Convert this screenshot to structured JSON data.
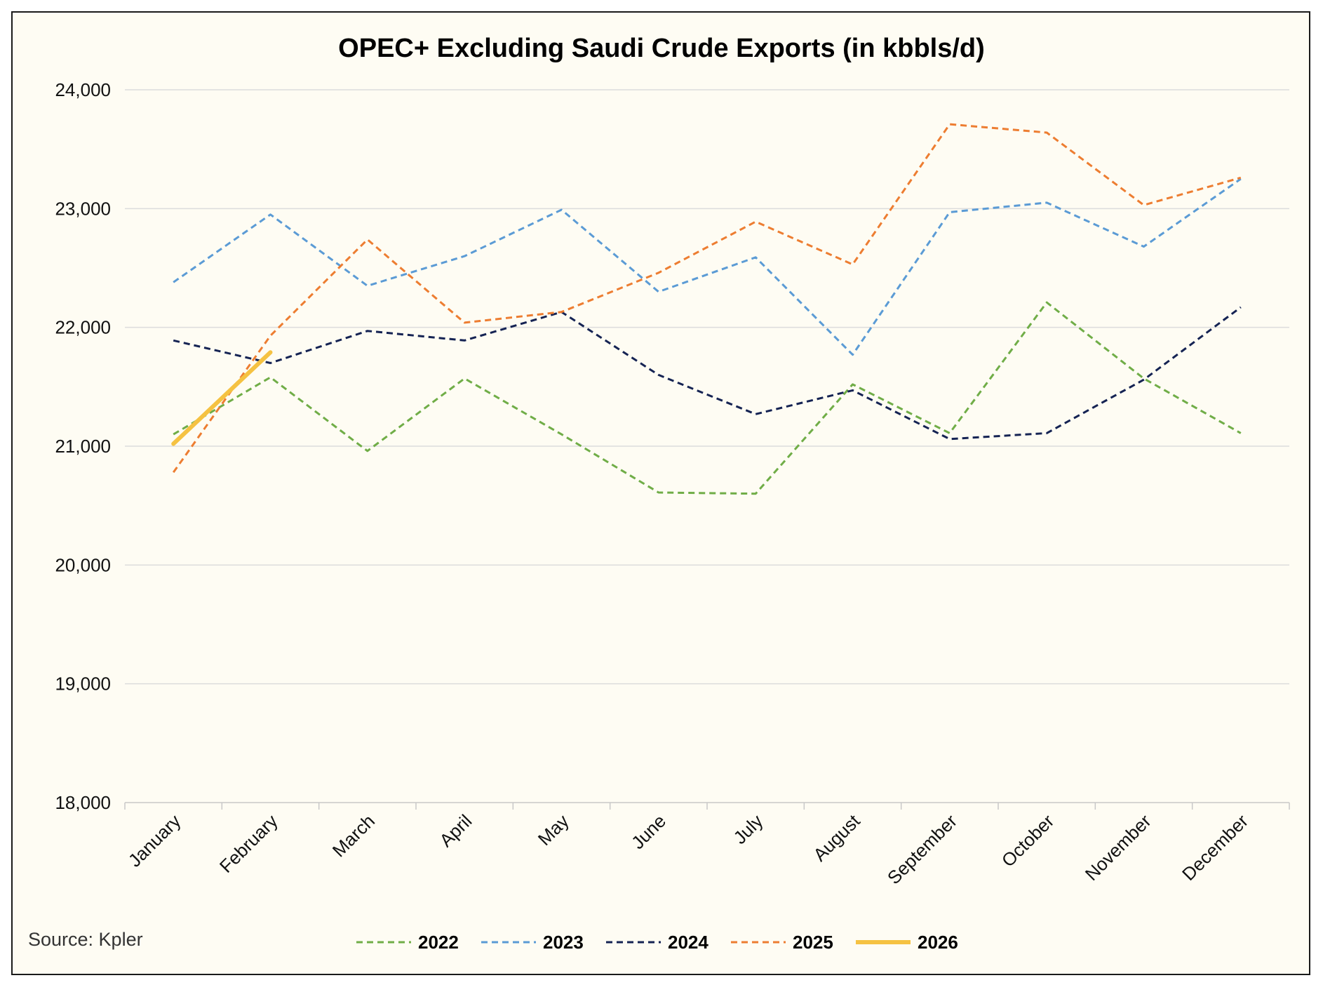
{
  "chart_data": {
    "type": "line",
    "title": "OPEC+ Excluding Saudi Crude Exports (in kbbls/d)",
    "xlabel": "",
    "ylabel": "",
    "ylim": [
      18000,
      24000
    ],
    "yticks": [
      18000,
      19000,
      20000,
      21000,
      22000,
      23000,
      24000
    ],
    "ytick_labels": [
      "18,000",
      "19,000",
      "20,000",
      "21,000",
      "22,000",
      "23,000",
      "24,000"
    ],
    "grid": "horizontal",
    "legend_position": "bottom",
    "categories": [
      "January",
      "February",
      "March",
      "April",
      "May",
      "June",
      "July",
      "August",
      "September",
      "October",
      "November",
      "December"
    ],
    "series": [
      {
        "name": "2022",
        "color": "#70ad47",
        "style": "dashed",
        "values": [
          21100,
          21580,
          20960,
          21570,
          21100,
          20610,
          20600,
          21520,
          21110,
          22210,
          21570,
          21110
        ]
      },
      {
        "name": "2023",
        "color": "#5b9bd5",
        "style": "dashed",
        "values": [
          22380,
          22950,
          22350,
          22600,
          22990,
          22300,
          22590,
          21770,
          22970,
          23050,
          22680,
          23250
        ]
      },
      {
        "name": "2024",
        "color": "#152353",
        "style": "dashed",
        "values": [
          21890,
          21700,
          21970,
          21890,
          22130,
          21600,
          21270,
          21470,
          21060,
          21110,
          21560,
          22170
        ]
      },
      {
        "name": "2025",
        "color": "#ed7d31",
        "style": "dashed",
        "values": [
          20780,
          21930,
          22740,
          22040,
          22130,
          22460,
          22890,
          22530,
          23710,
          23640,
          23030,
          23260
        ]
      },
      {
        "name": "2026",
        "color": "#f5c242",
        "style": "solid",
        "values": [
          21020,
          21790,
          null,
          null,
          null,
          null,
          null,
          null,
          null,
          null,
          null,
          null
        ]
      }
    ],
    "source": "Source: Kpler"
  }
}
